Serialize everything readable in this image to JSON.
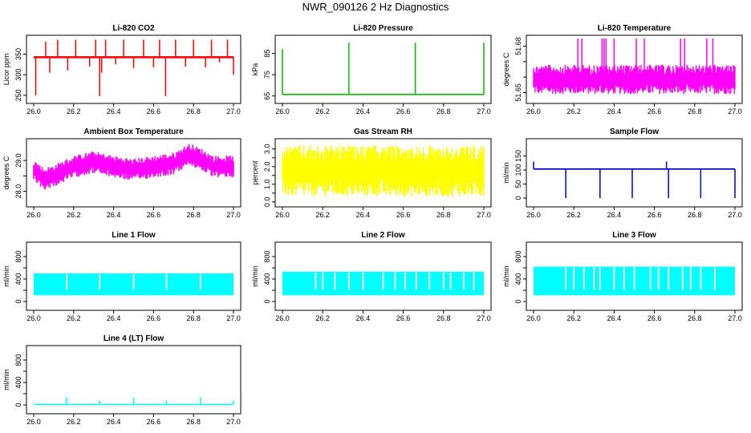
{
  "page": {
    "title": "NWR_090126  2 Hz Diagnostics"
  },
  "chart_data": [
    {
      "type": "line",
      "title": "Li-820 CO2",
      "ylabel": "Licor ppm",
      "color": "#ff0000",
      "xlim": [
        26.0,
        27.0
      ],
      "ylim": [
        238,
        388
      ],
      "yticks": [
        250,
        300,
        350
      ],
      "xticks": [
        "26.0",
        "26.2",
        "26.4",
        "26.6",
        "26.8",
        "27.0"
      ],
      "baseline": 343,
      "band": [
        340,
        345
      ],
      "spikes": [
        [
          26.01,
          250
        ],
        [
          26.06,
          380
        ],
        [
          26.08,
          305
        ],
        [
          26.12,
          385
        ],
        [
          26.17,
          310
        ],
        [
          26.21,
          385
        ],
        [
          26.28,
          320
        ],
        [
          26.31,
          385
        ],
        [
          26.33,
          248
        ],
        [
          26.34,
          305
        ],
        [
          26.36,
          385
        ],
        [
          26.41,
          325
        ],
        [
          26.45,
          385
        ],
        [
          26.5,
          316
        ],
        [
          26.55,
          385
        ],
        [
          26.6,
          318
        ],
        [
          26.63,
          385
        ],
        [
          26.66,
          248
        ],
        [
          26.71,
          385
        ],
        [
          26.76,
          320
        ],
        [
          26.8,
          385
        ],
        [
          26.86,
          318
        ],
        [
          26.89,
          385
        ],
        [
          26.93,
          330
        ],
        [
          26.97,
          385
        ],
        [
          27.0,
          300
        ]
      ]
    },
    {
      "type": "line",
      "title": "Li-820 Pressure",
      "ylabel": "kPa",
      "color": "#00bb00",
      "xlim": [
        26.0,
        27.0
      ],
      "ylim": [
        63,
        92
      ],
      "yticks": [
        65,
        75,
        85
      ],
      "xticks": [
        "26.0",
        "26.2",
        "26.4",
        "26.6",
        "26.8",
        "27.0"
      ],
      "baseline": 65.7,
      "band": [
        65.4,
        66.0
      ],
      "spikes": [
        [
          26.0,
          87
        ],
        [
          26.33,
          90
        ],
        [
          26.66,
          90
        ],
        [
          27.0,
          90
        ]
      ]
    },
    {
      "type": "line",
      "title": "Li-820 Temperature",
      "ylabel": "degrees C",
      "color": "#ff00ff",
      "xlim": [
        26.0,
        27.0
      ],
      "ylim": [
        51.645,
        51.685
      ],
      "yticks": [
        51.65,
        51.66,
        51.67,
        51.68
      ],
      "yticklabels": [
        "51.65",
        "",
        "",
        "51.68"
      ],
      "xticks": [
        "26.0",
        "26.2",
        "26.4",
        "26.6",
        "26.8",
        "27.0"
      ],
      "baseline": 51.66,
      "band": [
        51.649,
        51.668
      ],
      "spikes": [
        [
          26.22,
          51.685
        ],
        [
          26.24,
          51.685
        ],
        [
          26.34,
          51.685
        ],
        [
          26.35,
          51.685
        ],
        [
          26.36,
          51.685
        ],
        [
          26.4,
          51.685
        ],
        [
          26.51,
          51.685
        ],
        [
          26.55,
          51.685
        ],
        [
          26.73,
          51.685
        ],
        [
          26.75,
          51.685
        ],
        [
          26.86,
          51.685
        ],
        [
          26.89,
          51.685
        ]
      ]
    },
    {
      "type": "line",
      "title": "Ambient Box Temperature",
      "ylabel": "degrees C",
      "color": "#ff00ff",
      "xlim": [
        26.0,
        27.0
      ],
      "ylim": [
        27.6,
        29.6
      ],
      "yticks": [
        28.0,
        28.5,
        29.0
      ],
      "yticklabels": [
        "28.0",
        "",
        "29.0"
      ],
      "xticks": [
        "26.0",
        "26.2",
        "26.4",
        "26.6",
        "26.8",
        "27.0"
      ],
      "centerline": [
        [
          26.0,
          28.7
        ],
        [
          26.05,
          28.4
        ],
        [
          26.1,
          28.5
        ],
        [
          26.2,
          28.8
        ],
        [
          26.3,
          28.95
        ],
        [
          26.4,
          28.8
        ],
        [
          26.5,
          28.7
        ],
        [
          26.6,
          28.8
        ],
        [
          26.7,
          28.9
        ],
        [
          26.78,
          29.2
        ],
        [
          26.85,
          29.0
        ],
        [
          26.9,
          28.8
        ],
        [
          27.0,
          28.8
        ]
      ],
      "halfwidth": 0.3,
      "spikes": []
    },
    {
      "type": "line",
      "title": "Gas Stream RH",
      "ylabel": "percent",
      "color": "#ffff00",
      "xlim": [
        26.0,
        27.0
      ],
      "ylim": [
        -0.1,
        3.4
      ],
      "yticks": [
        0.0,
        0.5,
        1.0,
        1.5,
        2.0,
        2.5,
        3.0
      ],
      "yticklabels": [
        "0.0",
        "",
        "1.0",
        "",
        "2.0",
        "",
        "3.0"
      ],
      "xticks": [
        "26.0",
        "26.2",
        "26.4",
        "26.6",
        "26.8",
        "27.0"
      ],
      "baseline": 1.6,
      "band": [
        0.3,
        3.2
      ],
      "spikes": []
    },
    {
      "type": "line",
      "title": "Sample Flow",
      "ylabel": "ml/min",
      "color": "#0000cc",
      "xlim": [
        26.0,
        27.0
      ],
      "ylim": [
        -20,
        200
      ],
      "yticks": [
        0,
        50,
        100,
        150
      ],
      "xticks": [
        "26.0",
        "26.2",
        "26.4",
        "26.6",
        "26.8",
        "27.0"
      ],
      "baseline": 103,
      "band": [
        101,
        106
      ],
      "spikes": [
        [
          26.0,
          130
        ],
        [
          26.16,
          0
        ],
        [
          26.33,
          0
        ],
        [
          26.49,
          0
        ],
        [
          26.66,
          130
        ],
        [
          26.67,
          0
        ],
        [
          26.83,
          0
        ],
        [
          27.0,
          0
        ]
      ]
    },
    {
      "type": "line",
      "title": "Line 1 Flow",
      "ylabel": "ml/min",
      "color": "#00ffff",
      "xlim": [
        26.0,
        27.0
      ],
      "ylim": [
        -100,
        1000
      ],
      "yticks": [
        0,
        200,
        400,
        600,
        800
      ],
      "yticklabels": [
        "0",
        "",
        "400",
        "",
        "800"
      ],
      "xticks": [
        "26.0",
        "26.2",
        "26.4",
        "26.6",
        "26.8",
        "27.0"
      ],
      "baseline": 300,
      "band": [
        110,
        500
      ],
      "gaps": [
        26.165,
        26.33,
        26.5,
        26.665,
        26.835
      ]
    },
    {
      "type": "line",
      "title": "Line 2 Flow",
      "ylabel": "ml/min",
      "color": "#00ffff",
      "xlim": [
        26.0,
        27.0
      ],
      "ylim": [
        -100,
        1000
      ],
      "yticks": [
        0,
        200,
        400,
        600,
        800
      ],
      "yticklabels": [
        "0",
        "",
        "400",
        "",
        "800"
      ],
      "xticks": [
        "26.0",
        "26.2",
        "26.4",
        "26.6",
        "26.8",
        "27.0"
      ],
      "baseline": 300,
      "band": [
        110,
        530
      ],
      "gaps": [
        26.165,
        26.2,
        26.26,
        26.33,
        26.4,
        26.5,
        26.56,
        26.61,
        26.665,
        26.73,
        26.8,
        26.835,
        26.9,
        26.95
      ]
    },
    {
      "type": "line",
      "title": "Line 3 Flow",
      "ylabel": "ml/min",
      "color": "#00ffff",
      "xlim": [
        26.0,
        27.0
      ],
      "ylim": [
        -100,
        1000
      ],
      "yticks": [
        0,
        200,
        400,
        600,
        800
      ],
      "yticklabels": [
        "0",
        "",
        "400",
        "",
        "800"
      ],
      "xticks": [
        "26.0",
        "26.2",
        "26.4",
        "26.6",
        "26.8",
        "27.0"
      ],
      "baseline": 350,
      "band": [
        110,
        620
      ],
      "gaps": [
        26.16,
        26.2,
        26.25,
        26.3,
        26.33,
        26.4,
        26.45,
        26.5,
        26.58,
        26.62,
        26.67,
        26.74,
        26.78,
        26.83,
        26.9
      ]
    },
    {
      "type": "line",
      "title": "Line 4 (LT) Flow",
      "ylabel": "ml/min",
      "color": "#00ffff",
      "xlim": [
        26.0,
        27.0
      ],
      "ylim": [
        -100,
        1000
      ],
      "yticks": [
        0,
        200,
        400,
        600,
        800
      ],
      "yticklabels": [
        "0",
        "",
        "400",
        "",
        "800"
      ],
      "xticks": [
        "26.0",
        "26.2",
        "26.4",
        "26.6",
        "26.8",
        "27.0"
      ],
      "baseline": 15,
      "band": [
        10,
        20
      ],
      "spikes": [
        [
          26.165,
          140
        ],
        [
          26.33,
          80
        ],
        [
          26.5,
          140
        ],
        [
          26.665,
          80
        ],
        [
          26.835,
          140
        ],
        [
          27.0,
          80
        ]
      ]
    }
  ]
}
